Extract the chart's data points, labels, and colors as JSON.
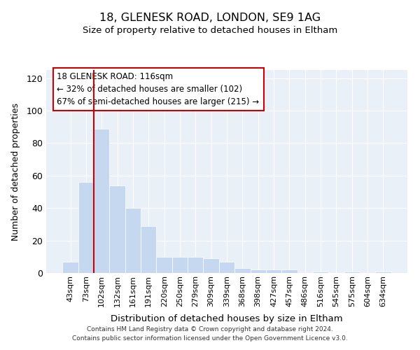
{
  "title": "18, GLENESK ROAD, LONDON, SE9 1AG",
  "subtitle": "Size of property relative to detached houses in Eltham",
  "xlabel": "Distribution of detached houses by size in Eltham",
  "ylabel": "Number of detached properties",
  "bar_color": "#c5d8f0",
  "categories": [
    "43sqm",
    "73sqm",
    "102sqm",
    "132sqm",
    "161sqm",
    "191sqm",
    "220sqm",
    "250sqm",
    "279sqm",
    "309sqm",
    "339sqm",
    "368sqm",
    "398sqm",
    "427sqm",
    "457sqm",
    "486sqm",
    "516sqm",
    "545sqm",
    "575sqm",
    "604sqm",
    "634sqm"
  ],
  "values": [
    7,
    56,
    89,
    54,
    40,
    29,
    10,
    10,
    10,
    9,
    7,
    3,
    2,
    2,
    2,
    0,
    1,
    0,
    1,
    0,
    1
  ],
  "vline_x": 2.0,
  "vline_color": "#cc0000",
  "annotation_text": "18 GLENESK ROAD: 116sqm\n← 32% of detached houses are smaller (102)\n67% of semi-detached houses are larger (215) →",
  "ylim": [
    0,
    125
  ],
  "yticks": [
    0,
    20,
    40,
    60,
    80,
    100,
    120
  ],
  "background_color": "#eaf0f8",
  "grid_color": "#ffffff",
  "footer_line1": "Contains HM Land Registry data © Crown copyright and database right 2024.",
  "footer_line2": "Contains public sector information licensed under the Open Government Licence v3.0."
}
